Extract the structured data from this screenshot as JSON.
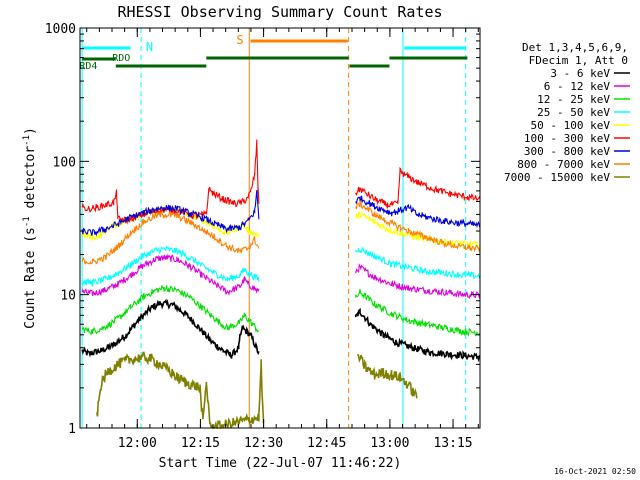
{
  "chart_data": {
    "type": "line",
    "title": "RHESSI Observing Summary Count Rates",
    "xlabel": "Start Time (22-Jul-07 11:46:22)",
    "ylabel_main": "Count Rate (s",
    "ylabel_sup1": "-1",
    "ylabel_mid": " detector",
    "ylabel_sup2": "-1",
    "ylabel_end": ")",
    "yscale": "log",
    "ylim": [
      1,
      1000
    ],
    "xlim_minutes_after_start": [
      0,
      95
    ],
    "x_ticks": [
      {
        "label": "12:00",
        "t": 13.6
      },
      {
        "label": "12:15",
        "t": 28.6
      },
      {
        "label": "12:30",
        "t": 43.6
      },
      {
        "label": "12:45",
        "t": 58.6
      },
      {
        "label": "13:00",
        "t": 73.6
      },
      {
        "label": "13:15",
        "t": 88.6
      }
    ],
    "y_ticks": [
      {
        "label": "1",
        "v": 1
      },
      {
        "label": "10",
        "v": 10
      },
      {
        "label": "100",
        "v": 100
      },
      {
        "label": "1000",
        "v": 1000
      }
    ],
    "legend_header": [
      "Det 1,3,4,5,6,9,",
      "FDecim 1, Att 0"
    ],
    "legend_position": "right",
    "series": [
      {
        "name": "3 - 6 keV",
        "color": "#000000",
        "values": [
          [
            0.5,
            3.8
          ],
          [
            2,
            3.6
          ],
          [
            5,
            3.8
          ],
          [
            8,
            4.2
          ],
          [
            11,
            5
          ],
          [
            14,
            6.5
          ],
          [
            17,
            8
          ],
          [
            19,
            8.6
          ],
          [
            22,
            8.4
          ],
          [
            25,
            7.2
          ],
          [
            28,
            5.8
          ],
          [
            31,
            4.5
          ],
          [
            34,
            3.8
          ],
          [
            36,
            3.5
          ],
          [
            37.7,
            4
          ],
          [
            38,
            4.8
          ],
          [
            38.6,
            5.6
          ],
          [
            40.5,
            5
          ],
          [
            42.5,
            3.6
          ],
          [
            38.7,
            5.5
          ],
          [
            65.5,
            6.8
          ],
          [
            66.5,
            7.5
          ],
          [
            69,
            6
          ],
          [
            72,
            5
          ],
          [
            75,
            4.4
          ],
          [
            79,
            4
          ],
          [
            83,
            3.7
          ],
          [
            87,
            3.6
          ],
          [
            91,
            3.5
          ],
          [
            95,
            3.4
          ]
        ]
      },
      {
        "name": "6 - 12 keV",
        "color": "#dd00dd",
        "values": [
          [
            0.5,
            10.5
          ],
          [
            3,
            10.2
          ],
          [
            6,
            10.8
          ],
          [
            9,
            12
          ],
          [
            12,
            14
          ],
          [
            15,
            16.5
          ],
          [
            18,
            18.5
          ],
          [
            20,
            19
          ],
          [
            23,
            18.4
          ],
          [
            26,
            16.4
          ],
          [
            29,
            14
          ],
          [
            32,
            12
          ],
          [
            35,
            10.5
          ],
          [
            38,
            11.5
          ],
          [
            39,
            13
          ],
          [
            40,
            12
          ],
          [
            42.5,
            10.5
          ],
          [
            65.5,
            15
          ],
          [
            66.5,
            16
          ],
          [
            70,
            13.5
          ],
          [
            74,
            12
          ],
          [
            78,
            11.2
          ],
          [
            82,
            10.8
          ],
          [
            87,
            10.4
          ],
          [
            91,
            10
          ],
          [
            95,
            9.9
          ]
        ]
      },
      {
        "name": "12 - 25 keV",
        "color": "#00e000",
        "values": [
          [
            0.5,
            5.5
          ],
          [
            3,
            5.3
          ],
          [
            6,
            5.7
          ],
          [
            9,
            6.6
          ],
          [
            12,
            8
          ],
          [
            15,
            9.6
          ],
          [
            18,
            10.8
          ],
          [
            20,
            11.2
          ],
          [
            23,
            10.8
          ],
          [
            26,
            9.6
          ],
          [
            29,
            8
          ],
          [
            32,
            6.6
          ],
          [
            35,
            5.6
          ],
          [
            38,
            6.2
          ],
          [
            39,
            7
          ],
          [
            40,
            6.5
          ],
          [
            42.5,
            5.3
          ],
          [
            65.5,
            9.5
          ],
          [
            66.5,
            10.5
          ],
          [
            70,
            8.5
          ],
          [
            74,
            7.2
          ],
          [
            78,
            6.4
          ],
          [
            82,
            6
          ],
          [
            87,
            5.6
          ],
          [
            91,
            5.3
          ],
          [
            95,
            5.2
          ]
        ]
      },
      {
        "name": "25 - 50 keV",
        "color": "#00ffff",
        "values": [
          [
            0.5,
            12.5
          ],
          [
            3,
            12.3
          ],
          [
            6,
            13
          ],
          [
            9,
            14.5
          ],
          [
            12,
            16.8
          ],
          [
            15,
            19.5
          ],
          [
            18,
            21.5
          ],
          [
            20,
            22
          ],
          [
            23,
            21.2
          ],
          [
            26,
            19
          ],
          [
            29,
            16.5
          ],
          [
            32,
            14.5
          ],
          [
            35,
            13
          ],
          [
            38,
            14
          ],
          [
            39,
            15.5
          ],
          [
            40,
            14.5
          ],
          [
            42.5,
            13
          ],
          [
            65.5,
            21
          ],
          [
            66.5,
            22
          ],
          [
            70,
            19.5
          ],
          [
            74,
            17
          ],
          [
            78,
            16
          ],
          [
            82,
            15
          ],
          [
            87,
            14.5
          ],
          [
            91,
            14
          ],
          [
            95,
            13.8
          ]
        ]
      },
      {
        "name": "50 - 100 keV",
        "color": "#ffff00",
        "values": [
          [
            0.5,
            28
          ],
          [
            3,
            27
          ],
          [
            5,
            28
          ],
          [
            7,
            32
          ],
          [
            10,
            35
          ],
          [
            13,
            38
          ],
          [
            16,
            41
          ],
          [
            19,
            43
          ],
          [
            21,
            43.5
          ],
          [
            24,
            42
          ],
          [
            27,
            39
          ],
          [
            30,
            35
          ],
          [
            33,
            31
          ],
          [
            35,
            29
          ],
          [
            37,
            31
          ],
          [
            38.6,
            34
          ],
          [
            40,
            30
          ],
          [
            42.5,
            28
          ],
          [
            65.5,
            38
          ],
          [
            66.5,
            40
          ],
          [
            70,
            35
          ],
          [
            73,
            31
          ],
          [
            76,
            29
          ],
          [
            80,
            27
          ],
          [
            84,
            25.5
          ],
          [
            88,
            24.5
          ],
          [
            92,
            24
          ],
          [
            95,
            23.5
          ]
        ]
      },
      {
        "name": "100 - 300 keV",
        "color": "#ff0000",
        "values": [
          [
            0.5,
            45
          ],
          [
            2,
            44
          ],
          [
            4,
            45
          ],
          [
            6,
            47
          ],
          [
            8,
            49
          ],
          [
            8.7,
            58
          ],
          [
            9,
            37
          ],
          [
            11,
            36
          ],
          [
            13,
            38
          ],
          [
            16,
            41
          ],
          [
            19,
            43
          ],
          [
            21,
            43.5
          ],
          [
            24,
            42
          ],
          [
            27,
            39
          ],
          [
            30,
            40
          ],
          [
            30.6,
            62
          ],
          [
            31.5,
            58
          ],
          [
            34,
            52
          ],
          [
            37,
            48
          ],
          [
            39,
            50
          ],
          [
            40.5,
            58
          ],
          [
            41.5,
            80
          ],
          [
            42,
            140
          ],
          [
            42.3,
            60
          ],
          [
            42.5,
            48
          ],
          [
            65.5,
            58
          ],
          [
            66.5,
            62
          ],
          [
            70,
            52
          ],
          [
            73,
            47
          ],
          [
            75.5,
            48
          ],
          [
            76,
            85
          ],
          [
            77,
            80
          ],
          [
            80,
            70
          ],
          [
            84,
            62
          ],
          [
            88,
            57
          ],
          [
            92,
            54
          ],
          [
            95,
            52
          ]
        ]
      },
      {
        "name": "300 - 800 keV",
        "color": "#0000dd",
        "values": [
          [
            0.5,
            30
          ],
          [
            3,
            29
          ],
          [
            6,
            31
          ],
          [
            9,
            34
          ],
          [
            12,
            38
          ],
          [
            15,
            41
          ],
          [
            18,
            44
          ],
          [
            20,
            45
          ],
          [
            23,
            44
          ],
          [
            26,
            41
          ],
          [
            29,
            38
          ],
          [
            32,
            34
          ],
          [
            35,
            31
          ],
          [
            38,
            32
          ],
          [
            40,
            36
          ],
          [
            41.5,
            42
          ],
          [
            42,
            60
          ],
          [
            42.5,
            38
          ],
          [
            65.5,
            50
          ],
          [
            66.5,
            53
          ],
          [
            70,
            46
          ],
          [
            74,
            41
          ],
          [
            78,
            45
          ],
          [
            80,
            40
          ],
          [
            84,
            37
          ],
          [
            88,
            35
          ],
          [
            92,
            34
          ],
          [
            95,
            33
          ]
        ]
      },
      {
        "name": "800 - 7000 keV",
        "color": "#ff8000",
        "values": [
          [
            0.5,
            18
          ],
          [
            3,
            17.5
          ],
          [
            6,
            19
          ],
          [
            9,
            23
          ],
          [
            12,
            29
          ],
          [
            15,
            35
          ],
          [
            18,
            39
          ],
          [
            20,
            40
          ],
          [
            23,
            39
          ],
          [
            26,
            35
          ],
          [
            29,
            31
          ],
          [
            32,
            27
          ],
          [
            35,
            23
          ],
          [
            38,
            21
          ],
          [
            40,
            22.5
          ],
          [
            41.5,
            26
          ],
          [
            42.5,
            22
          ],
          [
            65.5,
            45
          ],
          [
            66.5,
            48
          ],
          [
            70,
            40
          ],
          [
            74,
            34
          ],
          [
            78,
            30
          ],
          [
            82,
            27
          ],
          [
            86,
            24.5
          ],
          [
            90,
            23
          ],
          [
            95,
            22
          ]
        ]
      },
      {
        "name": "7000 - 15000 keV",
        "color": "#808000",
        "values": [
          [
            4,
            1.2
          ],
          [
            5,
            2.1
          ],
          [
            6,
            2.5
          ],
          [
            7,
            2.7
          ],
          [
            9,
            3
          ],
          [
            11,
            3.2
          ],
          [
            13,
            3.3
          ],
          [
            15,
            3.4
          ],
          [
            17,
            3.3
          ],
          [
            19,
            3
          ],
          [
            21,
            2.7
          ],
          [
            23,
            2.4
          ],
          [
            25,
            2.2
          ],
          [
            27,
            2.1
          ],
          [
            28.5,
            2
          ],
          [
            29.2,
            1.1
          ],
          [
            30,
            2.2
          ],
          [
            31,
            1
          ],
          [
            42.5,
            1.2
          ],
          [
            43,
            3
          ],
          [
            43.6,
            1
          ],
          [
            66,
            3.5
          ],
          [
            68,
            2.8
          ],
          [
            70,
            2.5
          ],
          [
            72,
            2.6
          ],
          [
            74,
            2.5
          ],
          [
            76,
            2.4
          ],
          [
            78,
            2.1
          ],
          [
            80,
            1.7
          ]
        ]
      }
    ],
    "annotations": [
      {
        "label": "N",
        "color": "#00ffff"
      },
      {
        "label": "S",
        "color": "#ff8000"
      },
      {
        "label": "RDO",
        "color": "#006400"
      },
      {
        "label": "RD4",
        "color": "#006400"
      }
    ],
    "timestamp": "16-Oct-2021 02:50"
  }
}
